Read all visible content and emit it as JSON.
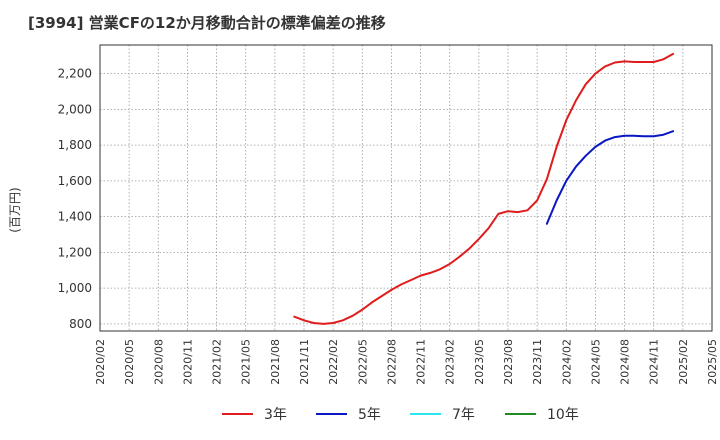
{
  "chart_data": {
    "type": "line",
    "title": "[3994]  営業CFの12か月移動合計の標準偏差の推移",
    "ylabel": "(百万円)",
    "ylim": [
      760,
      2360
    ],
    "yticks": [
      800,
      1000,
      1200,
      1400,
      1600,
      1800,
      2000,
      2200
    ],
    "ytick_labels": [
      "800",
      "1,000",
      "1,200",
      "1,400",
      "1,600",
      "1,800",
      "2,000",
      "2,200"
    ],
    "x_categories": [
      "2020/02",
      "2020/05",
      "2020/08",
      "2020/11",
      "2021/02",
      "2021/05",
      "2021/08",
      "2021/11",
      "2022/02",
      "2022/05",
      "2022/08",
      "2022/11",
      "2023/02",
      "2023/05",
      "2023/08",
      "2023/11",
      "2024/02",
      "2024/05",
      "2024/08",
      "2024/11",
      "2025/02",
      "2025/05"
    ],
    "grid": true,
    "legend_position": "bottom",
    "series": [
      {
        "name": "3年",
        "color": "#e01c1c",
        "points": [
          [
            "2021/10",
            840
          ],
          [
            "2021/11",
            820
          ],
          [
            "2021/12",
            805
          ],
          [
            "2022/01",
            800
          ],
          [
            "2022/02",
            805
          ],
          [
            "2022/03",
            820
          ],
          [
            "2022/04",
            845
          ],
          [
            "2022/05",
            880
          ],
          [
            "2022/06",
            920
          ],
          [
            "2022/07",
            955
          ],
          [
            "2022/08",
            990
          ],
          [
            "2022/09",
            1020
          ],
          [
            "2022/10",
            1045
          ],
          [
            "2022/11",
            1070
          ],
          [
            "2022/12",
            1085
          ],
          [
            "2023/01",
            1105
          ],
          [
            "2023/02",
            1135
          ],
          [
            "2023/03",
            1175
          ],
          [
            "2023/04",
            1220
          ],
          [
            "2023/05",
            1275
          ],
          [
            "2023/06",
            1335
          ],
          [
            "2023/07",
            1415
          ],
          [
            "2023/08",
            1430
          ],
          [
            "2023/09",
            1425
          ],
          [
            "2023/10",
            1435
          ],
          [
            "2023/11",
            1490
          ],
          [
            "2023/12",
            1610
          ],
          [
            "2024/01",
            1790
          ],
          [
            "2024/02",
            1940
          ],
          [
            "2024/03",
            2050
          ],
          [
            "2024/04",
            2140
          ],
          [
            "2024/05",
            2200
          ],
          [
            "2024/06",
            2240
          ],
          [
            "2024/07",
            2262
          ],
          [
            "2024/08",
            2268
          ],
          [
            "2024/09",
            2265
          ],
          [
            "2024/10",
            2265
          ],
          [
            "2024/11",
            2265
          ],
          [
            "2024/12",
            2280
          ],
          [
            "2025/01",
            2310
          ]
        ]
      },
      {
        "name": "5年",
        "color": "#0a17c4",
        "points": [
          [
            "2023/12",
            1360
          ],
          [
            "2024/01",
            1490
          ],
          [
            "2024/02",
            1600
          ],
          [
            "2024/03",
            1680
          ],
          [
            "2024/04",
            1740
          ],
          [
            "2024/05",
            1790
          ],
          [
            "2024/06",
            1825
          ],
          [
            "2024/07",
            1845
          ],
          [
            "2024/08",
            1852
          ],
          [
            "2024/09",
            1852
          ],
          [
            "2024/10",
            1850
          ],
          [
            "2024/11",
            1850
          ],
          [
            "2024/12",
            1858
          ],
          [
            "2025/01",
            1878
          ]
        ]
      },
      {
        "name": "7年",
        "color": "#2ee6ee",
        "points": []
      },
      {
        "name": "10年",
        "color": "#238b23",
        "points": []
      }
    ]
  }
}
